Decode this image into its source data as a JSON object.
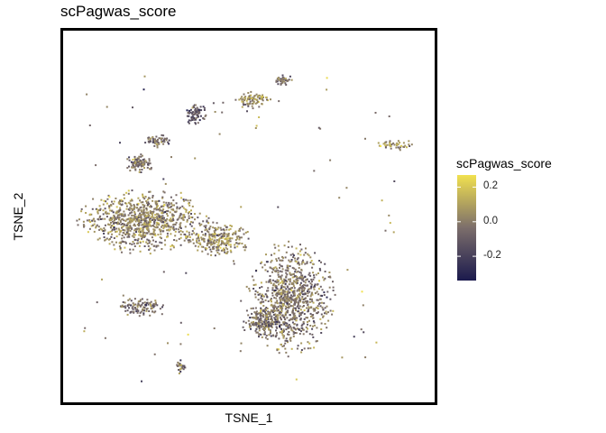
{
  "chart_data": {
    "type": "scatter",
    "title": "scPagwas_score",
    "xlabel": "TSNE_1",
    "ylabel": "TSNE_2",
    "xlim": [
      0,
      100
    ],
    "ylim": [
      0,
      100
    ],
    "grid": false,
    "legend": {
      "title": "scPagwas_score",
      "placement": "right",
      "ticks": [
        "0.2",
        "0.0",
        "-0.2"
      ],
      "tick_values": [
        0.2,
        0.0,
        -0.2
      ],
      "range": [
        -0.34,
        0.27
      ],
      "colors": {
        "low": "#1b1a4d",
        "mid": "#7c6e6b",
        "high": "#f1e14f"
      }
    },
    "clusters": [
      {
        "name": "large-left",
        "cx": 22,
        "cy": 49,
        "rx": 15,
        "ry": 7.5,
        "n": 900,
        "bias": 0.02,
        "spread": 0.09
      },
      {
        "name": "left-tail",
        "cx": 42,
        "cy": 44,
        "rx": 8,
        "ry": 4,
        "n": 260,
        "bias": 0.03,
        "spread": 0.09
      },
      {
        "name": "large-lower-right",
        "cx": 61,
        "cy": 28,
        "rx": 10,
        "ry": 13,
        "n": 900,
        "bias": -0.02,
        "spread": 0.09
      },
      {
        "name": "lower-right-tail",
        "cx": 54,
        "cy": 22,
        "rx": 5,
        "ry": 4,
        "n": 180,
        "bias": -0.04,
        "spread": 0.09
      },
      {
        "name": "upper-left-small",
        "cx": 21,
        "cy": 64,
        "rx": 3,
        "ry": 2.5,
        "n": 90,
        "bias": -0.03,
        "spread": 0.09
      },
      {
        "name": "upper-left-top",
        "cx": 26,
        "cy": 70,
        "rx": 3,
        "ry": 1.6,
        "n": 55,
        "bias": -0.06,
        "spread": 0.09
      },
      {
        "name": "upper-mid",
        "cx": 36,
        "cy": 77,
        "rx": 2.5,
        "ry": 2.5,
        "n": 80,
        "bias": -0.13,
        "spread": 0.08
      },
      {
        "name": "upper-arc",
        "cx": 51,
        "cy": 81,
        "rx": 4,
        "ry": 2,
        "n": 90,
        "bias": 0.05,
        "spread": 0.09
      },
      {
        "name": "top-cluster",
        "cx": 59,
        "cy": 86,
        "rx": 2.5,
        "ry": 1.3,
        "n": 40,
        "bias": -0.05,
        "spread": 0.09
      },
      {
        "name": "right-isolated",
        "cx": 89,
        "cy": 69,
        "rx": 4.5,
        "ry": 1.2,
        "n": 45,
        "bias": 0.04,
        "spread": 0.09
      },
      {
        "name": "lower-left",
        "cx": 21,
        "cy": 26,
        "rx": 6,
        "ry": 2.3,
        "n": 110,
        "bias": -0.04,
        "spread": 0.09
      },
      {
        "name": "bottom-small",
        "cx": 32,
        "cy": 10,
        "rx": 1.2,
        "ry": 1.6,
        "n": 25,
        "bias": -0.03,
        "spread": 0.09
      }
    ],
    "scatter_points": 90
  }
}
